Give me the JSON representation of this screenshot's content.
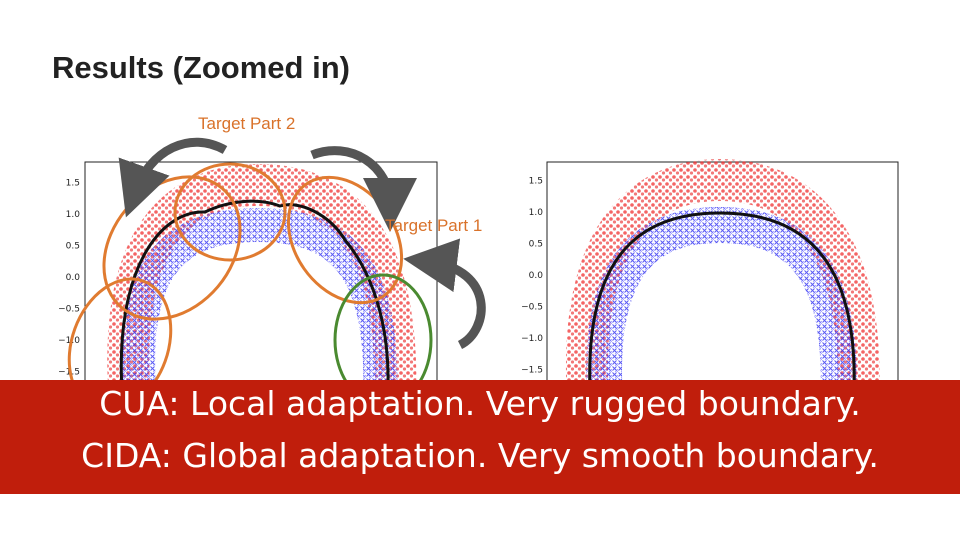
{
  "header": {
    "title": "Results (Zoomed in)"
  },
  "annotations": {
    "target_part_2": "Target Part 2",
    "target_part_1": "Target Part 1"
  },
  "plots": [
    {
      "yticks": [
        "1.5",
        "1.0",
        "0.5",
        "0.0",
        "−0.5",
        "−1.0",
        "−1.5"
      ]
    },
    {
      "yticks": [
        "1.5",
        "1.0",
        "0.5",
        "0.0",
        "−0.5",
        "−1.0",
        "−1.5"
      ]
    }
  ],
  "banner": {
    "lines": [
      "CUA: Local adaptation. Very rugged boundary.",
      "CIDA: Global adaptation. Very smooth boundary."
    ]
  }
}
